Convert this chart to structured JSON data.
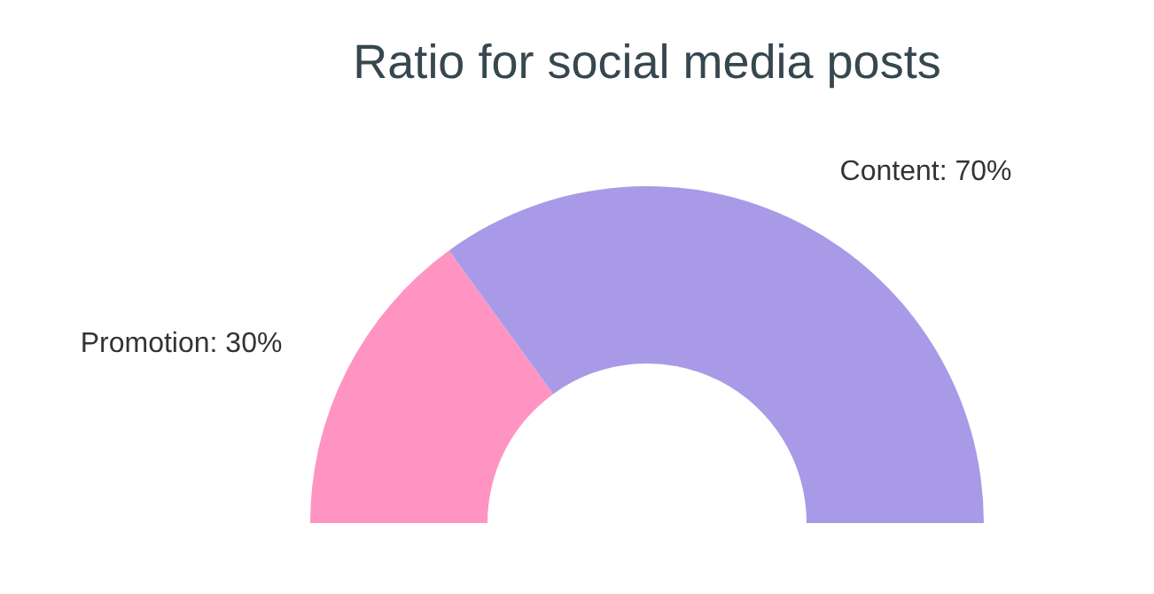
{
  "chart_data": {
    "type": "donut",
    "title": "Ratio for social media posts",
    "categories": [
      "Promotion",
      "Content"
    ],
    "values": [
      30,
      70
    ],
    "colors": [
      "#ff94c2",
      "#a99ae8"
    ],
    "value_labels": [
      "30%",
      "70%"
    ],
    "legend": false
  }
}
